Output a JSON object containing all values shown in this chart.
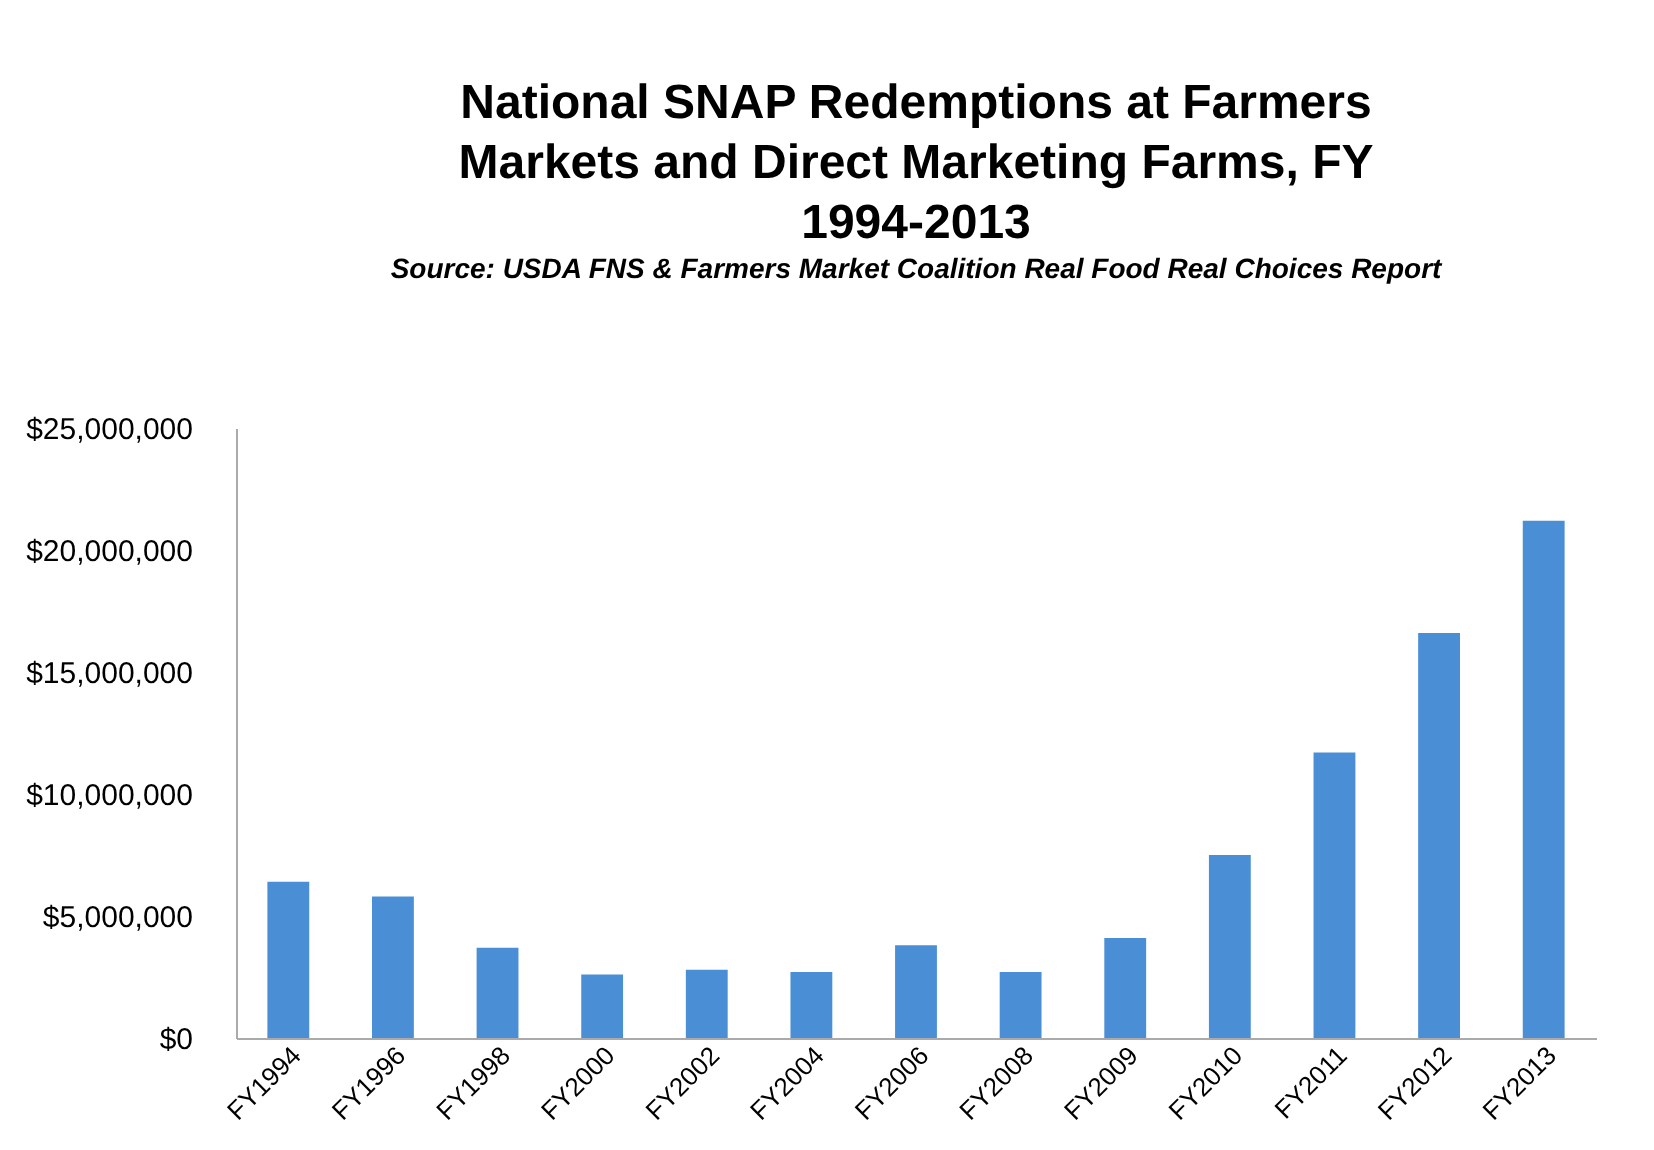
{
  "chart_data": {
    "type": "bar",
    "title": "National SNAP Redemptions at Farmers Markets and Direct Marketing Farms, FY 1994-2013",
    "subtitle": "Source: USDA FNS &  Farmers Market Coalition Real Food Real Choices Report",
    "categories": [
      "FY1994",
      "FY1996",
      "FY1998",
      "FY2000",
      "FY2002",
      "FY2004",
      "FY2006",
      "FY2008",
      "FY2009",
      "FY2010",
      "FY2011",
      "FY2012",
      "FY2013"
    ],
    "values": [
      6400000,
      5800000,
      3700000,
      2600000,
      2800000,
      2700000,
      3800000,
      2700000,
      4100000,
      7500000,
      11700000,
      16600000,
      21200000
    ],
    "color": "#4a8fd6",
    "ylim": [
      0,
      25000000
    ],
    "yticks": [
      {
        "value": 0,
        "label": "$0"
      },
      {
        "value": 5000000,
        "label": "$5,000,000"
      },
      {
        "value": 10000000,
        "label": "$10,000,000"
      },
      {
        "value": 15000000,
        "label": "$15,000,000"
      },
      {
        "value": 20000000,
        "label": "$20,000,000"
      },
      {
        "value": 25000000,
        "label": "$25,000,000"
      }
    ],
    "grid": false
  }
}
